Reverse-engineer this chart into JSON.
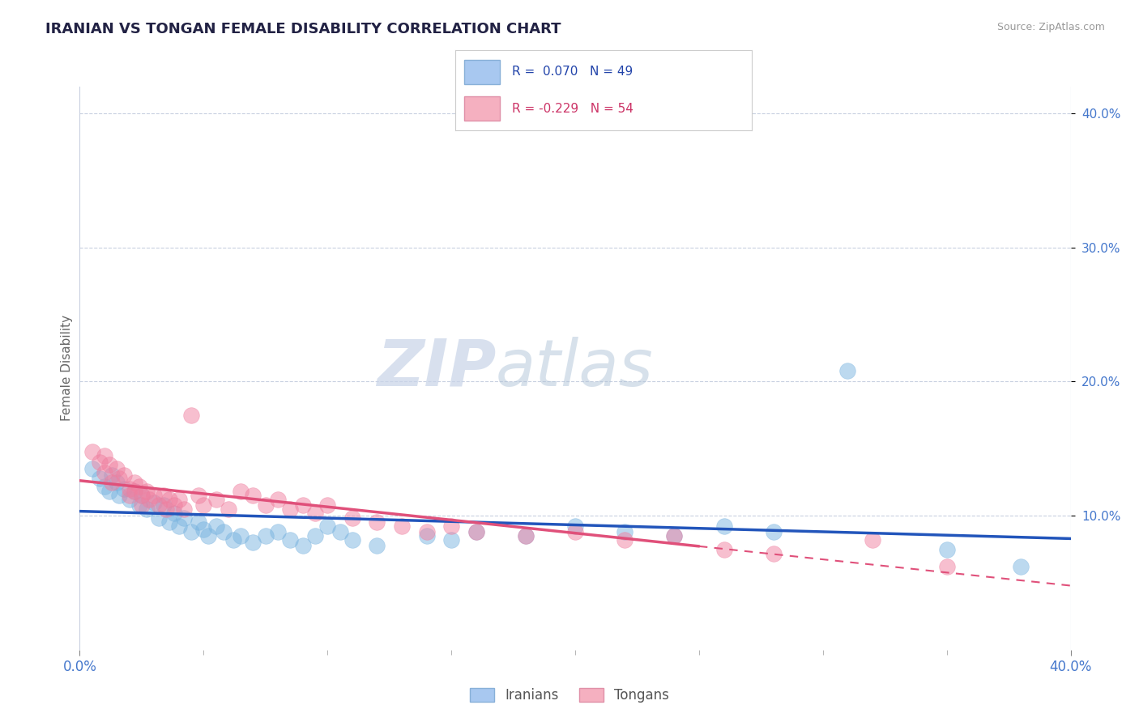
{
  "title": "IRANIAN VS TONGAN FEMALE DISABILITY CORRELATION CHART",
  "source": "Source: ZipAtlas.com",
  "ylabel": "Female Disability",
  "xmin": 0.0,
  "xmax": 0.4,
  "ymin": 0.0,
  "ymax": 0.42,
  "yticks": [
    0.1,
    0.2,
    0.3,
    0.4
  ],
  "watermark_zip": "ZIP",
  "watermark_atlas": "atlas",
  "iranians_color": "#7ab4e0",
  "tongans_color": "#f080a0",
  "iranians_scatter": [
    [
      0.005,
      0.135
    ],
    [
      0.008,
      0.128
    ],
    [
      0.01,
      0.122
    ],
    [
      0.012,
      0.118
    ],
    [
      0.013,
      0.13
    ],
    [
      0.015,
      0.125
    ],
    [
      0.016,
      0.115
    ],
    [
      0.018,
      0.12
    ],
    [
      0.02,
      0.112
    ],
    [
      0.022,
      0.118
    ],
    [
      0.024,
      0.108
    ],
    [
      0.025,
      0.115
    ],
    [
      0.027,
      0.105
    ],
    [
      0.03,
      0.11
    ],
    [
      0.032,
      0.098
    ],
    [
      0.034,
      0.108
    ],
    [
      0.036,
      0.095
    ],
    [
      0.038,
      0.102
    ],
    [
      0.04,
      0.092
    ],
    [
      0.042,
      0.098
    ],
    [
      0.045,
      0.088
    ],
    [
      0.048,
      0.095
    ],
    [
      0.05,
      0.09
    ],
    [
      0.052,
      0.085
    ],
    [
      0.055,
      0.092
    ],
    [
      0.058,
      0.088
    ],
    [
      0.062,
      0.082
    ],
    [
      0.065,
      0.085
    ],
    [
      0.07,
      0.08
    ],
    [
      0.075,
      0.085
    ],
    [
      0.08,
      0.088
    ],
    [
      0.085,
      0.082
    ],
    [
      0.09,
      0.078
    ],
    [
      0.095,
      0.085
    ],
    [
      0.1,
      0.092
    ],
    [
      0.105,
      0.088
    ],
    [
      0.11,
      0.082
    ],
    [
      0.12,
      0.078
    ],
    [
      0.14,
      0.085
    ],
    [
      0.15,
      0.082
    ],
    [
      0.16,
      0.088
    ],
    [
      0.18,
      0.085
    ],
    [
      0.2,
      0.092
    ],
    [
      0.22,
      0.088
    ],
    [
      0.24,
      0.085
    ],
    [
      0.26,
      0.092
    ],
    [
      0.28,
      0.088
    ],
    [
      0.31,
      0.208
    ],
    [
      0.35,
      0.075
    ],
    [
      0.38,
      0.062
    ]
  ],
  "tongans_scatter": [
    [
      0.005,
      0.148
    ],
    [
      0.008,
      0.14
    ],
    [
      0.01,
      0.145
    ],
    [
      0.01,
      0.132
    ],
    [
      0.012,
      0.138
    ],
    [
      0.013,
      0.125
    ],
    [
      0.015,
      0.135
    ],
    [
      0.016,
      0.128
    ],
    [
      0.018,
      0.13
    ],
    [
      0.02,
      0.12
    ],
    [
      0.02,
      0.115
    ],
    [
      0.022,
      0.125
    ],
    [
      0.022,
      0.118
    ],
    [
      0.024,
      0.122
    ],
    [
      0.025,
      0.115
    ],
    [
      0.025,
      0.108
    ],
    [
      0.027,
      0.118
    ],
    [
      0.028,
      0.112
    ],
    [
      0.03,
      0.115
    ],
    [
      0.032,
      0.108
    ],
    [
      0.034,
      0.115
    ],
    [
      0.035,
      0.105
    ],
    [
      0.036,
      0.112
    ],
    [
      0.038,
      0.108
    ],
    [
      0.04,
      0.112
    ],
    [
      0.042,
      0.105
    ],
    [
      0.045,
      0.175
    ],
    [
      0.048,
      0.115
    ],
    [
      0.05,
      0.108
    ],
    [
      0.055,
      0.112
    ],
    [
      0.06,
      0.105
    ],
    [
      0.065,
      0.118
    ],
    [
      0.07,
      0.115
    ],
    [
      0.075,
      0.108
    ],
    [
      0.08,
      0.112
    ],
    [
      0.085,
      0.105
    ],
    [
      0.09,
      0.108
    ],
    [
      0.095,
      0.102
    ],
    [
      0.1,
      0.108
    ],
    [
      0.11,
      0.098
    ],
    [
      0.12,
      0.095
    ],
    [
      0.13,
      0.092
    ],
    [
      0.14,
      0.088
    ],
    [
      0.15,
      0.092
    ],
    [
      0.16,
      0.088
    ],
    [
      0.18,
      0.085
    ],
    [
      0.2,
      0.088
    ],
    [
      0.22,
      0.082
    ],
    [
      0.24,
      0.085
    ],
    [
      0.26,
      0.075
    ],
    [
      0.28,
      0.072
    ],
    [
      0.32,
      0.082
    ],
    [
      0.35,
      0.062
    ]
  ],
  "background_color": "#ffffff",
  "grid_color": "#c8d0e0",
  "plot_bg": "#ffffff"
}
